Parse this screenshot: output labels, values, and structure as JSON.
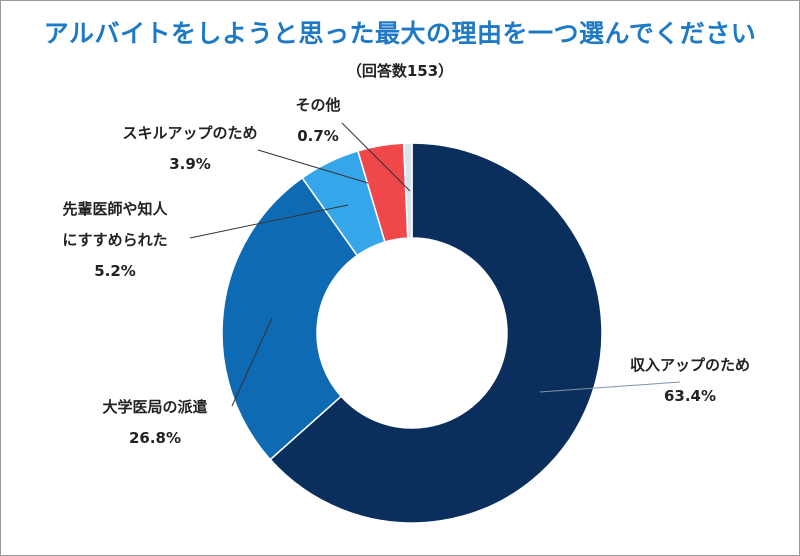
{
  "chart_data": {
    "type": "pie",
    "title": "アルバイトをしようと思った最大の理由を一つ選んでください",
    "subtitle": "（回答数153）",
    "donut": true,
    "slices": [
      {
        "label": "収入アップのため",
        "value": 63.4,
        "pct_label": "63.4%",
        "color": "#0a2f5c"
      },
      {
        "label": "大学医局の派遣",
        "value": 26.8,
        "pct_label": "26.8%",
        "color": "#0f6ab4"
      },
      {
        "label": "先輩医師や知人にすすめられた",
        "label_lines": [
          "先輩医師や知人",
          "にすすめられた"
        ],
        "value": 5.2,
        "pct_label": "5.2%",
        "color": "#36a6ea"
      },
      {
        "label": "スキルアップのため",
        "value": 3.9,
        "pct_label": "3.9%",
        "color": "#f0474a"
      },
      {
        "label": "その他",
        "value": 0.7,
        "pct_label": "0.7%",
        "color": "#d7e6ef"
      }
    ]
  }
}
